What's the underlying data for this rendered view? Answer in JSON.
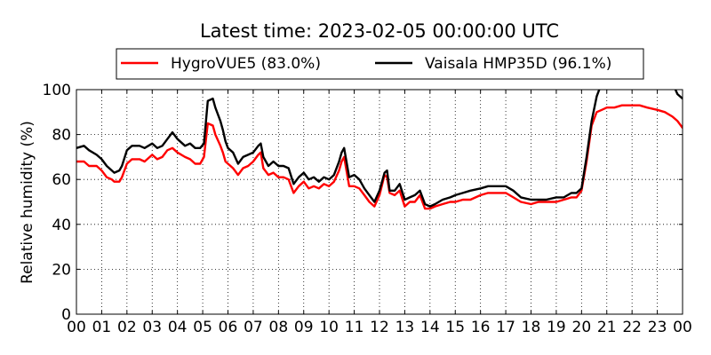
{
  "chart_data": {
    "type": "line",
    "title": "Latest time: 2023-02-05 00:00:00 UTC",
    "xlabel": "",
    "ylabel": "Relative humidity (%)",
    "xlim": [
      0,
      24
    ],
    "ylim": [
      0,
      100
    ],
    "x_ticks": [
      "00",
      "01",
      "02",
      "03",
      "04",
      "05",
      "06",
      "07",
      "08",
      "09",
      "10",
      "11",
      "12",
      "13",
      "14",
      "15",
      "16",
      "17",
      "18",
      "19",
      "20",
      "21",
      "22",
      "23",
      "00"
    ],
    "y_ticks": [
      "0",
      "20",
      "40",
      "60",
      "80",
      "100"
    ],
    "grid": true,
    "legend_position": "top",
    "series": [
      {
        "name": "HygroVUE5 (83.0%)",
        "color": "#ff0000",
        "x": [
          0,
          0.3,
          0.5,
          0.8,
          1.0,
          1.2,
          1.4,
          1.5,
          1.7,
          1.8,
          2.0,
          2.2,
          2.5,
          2.7,
          3.0,
          3.2,
          3.4,
          3.6,
          3.8,
          4.0,
          4.3,
          4.5,
          4.7,
          4.9,
          5.05,
          5.2,
          5.4,
          5.5,
          5.7,
          5.8,
          5.9,
          6.0,
          6.2,
          6.4,
          6.6,
          6.8,
          7.0,
          7.2,
          7.3,
          7.4,
          7.6,
          7.8,
          8.0,
          8.2,
          8.4,
          8.6,
          8.8,
          9.0,
          9.2,
          9.4,
          9.6,
          9.8,
          10.0,
          10.2,
          10.4,
          10.5,
          10.6,
          10.8,
          11.0,
          11.2,
          11.4,
          11.6,
          11.8,
          12.0,
          12.2,
          12.3,
          12.4,
          12.6,
          12.8,
          13.0,
          13.2,
          13.4,
          13.6,
          13.8,
          14.0,
          14.2,
          14.5,
          14.8,
          15.0,
          15.3,
          15.6,
          16.0,
          16.3,
          16.6,
          17.0,
          17.3,
          17.6,
          18.0,
          18.3,
          18.6,
          19.0,
          19.3,
          19.6,
          19.8,
          20.0,
          20.2,
          20.4,
          20.6,
          20.8,
          21.0,
          21.3,
          21.6,
          22.0,
          22.3,
          22.6,
          23.0,
          23.3,
          23.6,
          23.8,
          24.0
        ],
        "values": [
          68,
          68,
          66,
          66,
          64,
          61,
          60,
          59,
          59,
          61,
          67,
          69,
          69,
          68,
          71,
          69,
          70,
          73,
          74,
          72,
          70,
          69,
          67,
          67,
          70,
          85,
          84,
          80,
          75,
          72,
          68,
          67,
          65,
          62,
          65,
          66,
          68,
          71,
          72,
          65,
          62,
          63,
          61,
          61,
          60,
          54,
          57,
          59,
          56,
          57,
          56,
          58,
          57,
          59,
          64,
          68,
          70,
          57,
          57,
          56,
          53,
          50,
          48,
          53,
          62,
          61,
          54,
          53,
          55,
          48,
          50,
          50,
          53,
          47,
          47,
          48,
          49,
          50,
          50,
          51,
          51,
          53,
          54,
          54,
          54,
          52,
          50,
          49,
          50,
          50,
          50,
          51,
          52,
          52,
          55,
          68,
          84,
          90,
          91,
          92,
          92,
          93,
          93,
          93,
          92,
          91,
          90,
          88,
          86,
          83
        ]
      },
      {
        "name": "Vaisala HMP35D (96.1%)",
        "color": "#000000",
        "x": [
          0,
          0.3,
          0.5,
          0.8,
          1.0,
          1.2,
          1.4,
          1.5,
          1.7,
          1.8,
          2.0,
          2.2,
          2.5,
          2.7,
          3.0,
          3.2,
          3.4,
          3.6,
          3.8,
          4.0,
          4.3,
          4.5,
          4.7,
          4.9,
          5.05,
          5.2,
          5.4,
          5.5,
          5.7,
          5.8,
          5.9,
          6.0,
          6.2,
          6.4,
          6.6,
          6.8,
          7.0,
          7.2,
          7.3,
          7.4,
          7.6,
          7.8,
          8.0,
          8.2,
          8.4,
          8.6,
          8.8,
          9.0,
          9.2,
          9.4,
          9.6,
          9.8,
          10.0,
          10.2,
          10.4,
          10.5,
          10.6,
          10.8,
          11.0,
          11.2,
          11.4,
          11.6,
          11.8,
          12.0,
          12.2,
          12.3,
          12.4,
          12.6,
          12.8,
          13.0,
          13.2,
          13.4,
          13.6,
          13.8,
          14.0,
          14.2,
          14.5,
          14.8,
          15.0,
          15.3,
          15.6,
          16.0,
          16.3,
          16.6,
          17.0,
          17.3,
          17.6,
          18.0,
          18.3,
          18.6,
          19.0,
          19.3,
          19.6,
          19.8,
          20.0,
          20.2,
          20.4,
          20.6,
          20.8,
          21.0,
          21.3,
          21.6,
          22.0,
          22.3,
          22.6,
          23.0,
          23.3,
          23.6,
          23.8,
          24.0
        ],
        "values": [
          74,
          75,
          73,
          71,
          69,
          66,
          64,
          63,
          64,
          66,
          73,
          75,
          75,
          74,
          76,
          74,
          75,
          78,
          81,
          78,
          75,
          76,
          74,
          74,
          76,
          95,
          96,
          92,
          86,
          82,
          77,
          74,
          72,
          67,
          70,
          71,
          72,
          75,
          76,
          70,
          66,
          68,
          66,
          66,
          65,
          58,
          61,
          63,
          60,
          61,
          59,
          61,
          60,
          62,
          68,
          72,
          74,
          61,
          62,
          60,
          56,
          53,
          50,
          55,
          63,
          64,
          55,
          55,
          58,
          51,
          52,
          53,
          55,
          49,
          48,
          49,
          51,
          52,
          53,
          54,
          55,
          56,
          57,
          57,
          57,
          55,
          52,
          51,
          51,
          51,
          52,
          52,
          54,
          54,
          56,
          70,
          86,
          97,
          103,
          103,
          103,
          103,
          103,
          103,
          103,
          103,
          103,
          103,
          98,
          96
        ]
      }
    ]
  }
}
